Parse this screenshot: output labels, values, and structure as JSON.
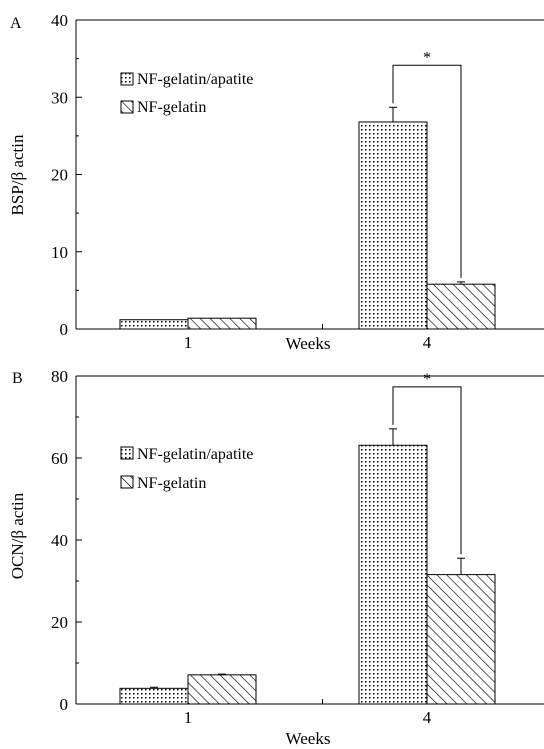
{
  "chart_data": [
    {
      "panel_label": "A",
      "type": "bar",
      "categories": [
        "1",
        "4"
      ],
      "series": [
        {
          "name": "NF-gelatin/apatite",
          "pattern": "dots",
          "values": [
            1.2,
            26.8
          ],
          "errors": [
            0.0,
            1.9
          ]
        },
        {
          "name": "NF-gelatin",
          "pattern": "hatch",
          "values": [
            1.4,
            5.8
          ],
          "errors": [
            0.0,
            0.3
          ]
        }
      ],
      "xlabel": "Weeks",
      "ylabel": "BSP/β actin",
      "ylim": [
        0,
        40
      ],
      "yticks": [
        "0",
        "10",
        "20",
        "30",
        "40"
      ],
      "significance_marker": "*",
      "legend_position": "top-left",
      "grid": false
    },
    {
      "panel_label": "B",
      "type": "bar",
      "categories": [
        "1",
        "4"
      ],
      "series": [
        {
          "name": "NF-gelatin/apatite",
          "pattern": "dots",
          "values": [
            4.3,
            71.0
          ],
          "errors": [
            0.3,
            4.5
          ]
        },
        {
          "name": "NF-gelatin",
          "pattern": "hatch",
          "values": [
            8.0,
            35.5
          ],
          "errors": [
            0.2,
            4.5
          ]
        }
      ],
      "xlabel": "Weeks",
      "ylabel": "OCN/β actin",
      "ylim": [
        0,
        90
      ],
      "yticks": [
        "0",
        "20",
        "40",
        "60",
        "80"
      ],
      "significance_marker": "*",
      "legend_position": "top-left",
      "grid": false
    }
  ],
  "colors": {
    "axis": "#000000",
    "fill": "#ffffff"
  }
}
